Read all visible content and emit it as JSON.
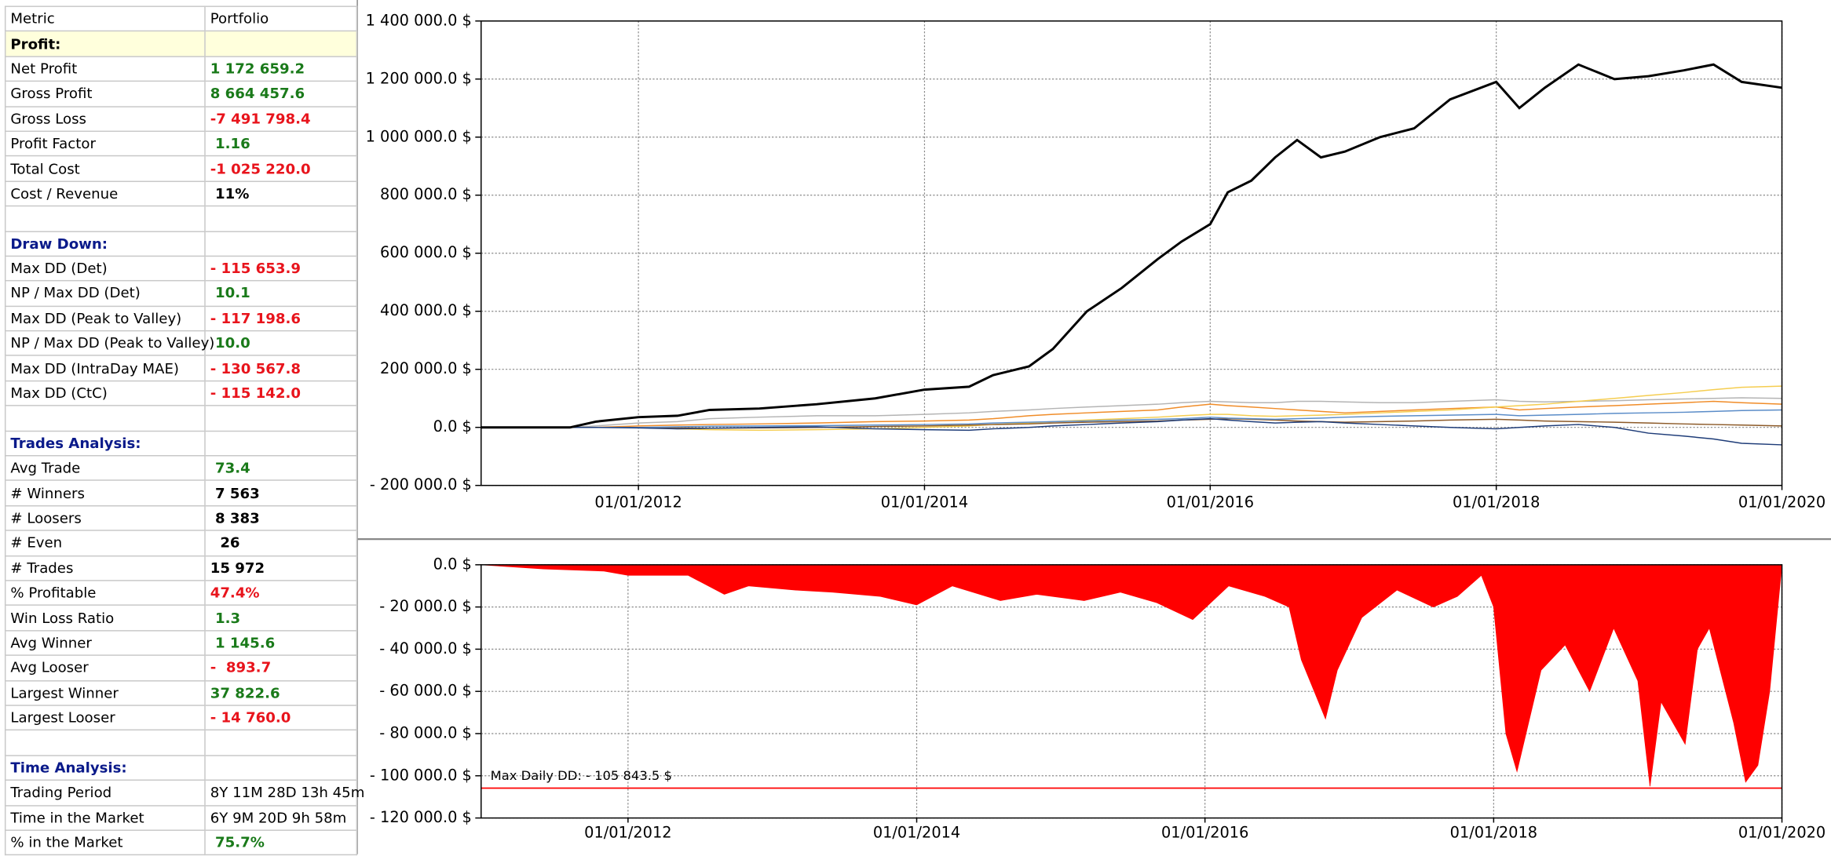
{
  "table": {
    "headers": [
      "Metric",
      "Portfolio"
    ],
    "sections": [
      {
        "title": "Profit:",
        "rows": [
          {
            "metric": "Net Profit",
            "value": "1 172 659.2",
            "color": "#1a7a1a"
          },
          {
            "metric": "Gross Profit",
            "value": "8 664 457.6",
            "color": "#1a7a1a"
          },
          {
            "metric": "Gross Loss",
            "value": "-7 491 798.4",
            "color": "#e8141c"
          },
          {
            "metric": "Profit Factor",
            "value": " 1.16",
            "color": "#1a7a1a"
          },
          {
            "metric": "Total Cost",
            "value": "-1 025 220.0",
            "color": "#e8141c"
          },
          {
            "metric": "Cost / Revenue",
            "value": " 11%",
            "color": "#000000"
          }
        ]
      },
      {
        "title": "Draw Down:",
        "rows": [
          {
            "metric": "Max DD (Det)",
            "value": "- 115 653.9",
            "color": "#e8141c"
          },
          {
            "metric": "NP / Max DD (Det)",
            "value": " 10.1",
            "color": "#1a7a1a"
          },
          {
            "metric": "Max DD (Peak to Valley)",
            "value": "- 117 198.6",
            "color": "#e8141c"
          },
          {
            "metric": "NP / Max DD (Peak to Valley)",
            "value": " 10.0",
            "color": "#1a7a1a"
          },
          {
            "metric": "Max DD (IntraDay MAE)",
            "value": "- 130 567.8",
            "color": "#e8141c"
          },
          {
            "metric": "Max DD (CtC)",
            "value": "- 115 142.0",
            "color": "#e8141c"
          }
        ]
      },
      {
        "title": "Trades Analysis:",
        "rows": [
          {
            "metric": "Avg Trade",
            "value": " 73.4",
            "color": "#1a7a1a"
          },
          {
            "metric": "# Winners",
            "value": " 7 563",
            "color": "#000000"
          },
          {
            "metric": "# Loosers",
            "value": " 8 383",
            "color": "#000000"
          },
          {
            "metric": "# Even",
            "value": "  26",
            "color": "#000000"
          },
          {
            "metric": "# Trades",
            "value": "15 972",
            "color": "#000000"
          },
          {
            "metric": "% Profitable",
            "value": "47.4%",
            "color": "#e8141c"
          },
          {
            "metric": "Win Loss Ratio",
            "value": " 1.3",
            "color": "#1a7a1a"
          },
          {
            "metric": "Avg Winner",
            "value": " 1 145.6",
            "color": "#1a7a1a"
          },
          {
            "metric": "Avg Looser",
            "value": "-  893.7",
            "color": "#e8141c"
          },
          {
            "metric": "Largest Winner",
            "value": "37 822.6",
            "color": "#1a7a1a"
          },
          {
            "metric": "Largest Looser",
            "value": "- 14 760.0",
            "color": "#e8141c"
          }
        ]
      },
      {
        "title": "Time Analysis:",
        "rows": [
          {
            "metric": "Trading Period",
            "value": "8Y 11M 28D 13h 45m",
            "color": "#000000",
            "weight": "normal"
          },
          {
            "metric": "Time in the Market",
            "value": "6Y 9M 20D 9h 58m",
            "color": "#000000",
            "weight": "normal"
          },
          {
            "metric": "% in the Market",
            "value": " 75.7%",
            "color": "#1a7a1a"
          }
        ]
      }
    ]
  },
  "chart_data": [
    {
      "type": "line",
      "x": [
        "2010-11-25",
        "2011-07-10",
        "2011-09-15",
        "2012-01-01",
        "2012-04-10",
        "2012-07-01",
        "2012-11-05",
        "2013-04-01",
        "2013-08-28",
        "2014-01-01",
        "2014-04-25",
        "2014-06-25",
        "2014-09-25",
        "2014-11-25",
        "2015-02-20",
        "2015-05-20",
        "2015-08-20",
        "2015-10-20",
        "2016-01-01",
        "2016-02-15",
        "2016-04-15",
        "2016-06-15",
        "2016-08-10",
        "2016-10-10",
        "2016-12-10",
        "2017-03-10",
        "2017-06-05",
        "2017-09-05",
        "2018-01-01",
        "2018-03-01",
        "2018-05-05",
        "2018-07-30",
        "2018-10-30",
        "2019-01-25",
        "2019-04-25",
        "2019-07-10",
        "2019-09-20",
        "2020-01-01"
      ],
      "series": [
        {
          "color": "#f08c28",
          "values": [
            0,
            0,
            0,
            5000,
            8000,
            10000,
            12000,
            15000,
            20000,
            22000,
            25000,
            30000,
            40000,
            45000,
            50000,
            55000,
            60000,
            70000,
            80000,
            75000,
            70000,
            65000,
            60000,
            55000,
            50000,
            55000,
            60000,
            65000,
            70000,
            60000,
            65000,
            70000,
            75000,
            80000,
            85000,
            90000,
            85000,
            80000
          ]
        },
        {
          "color": "#b4b4b4",
          "values": [
            0,
            0,
            5000,
            15000,
            20000,
            30000,
            35000,
            40000,
            40000,
            45000,
            50000,
            55000,
            60000,
            65000,
            70000,
            75000,
            80000,
            85000,
            90000,
            88000,
            85000,
            85000,
            90000,
            90000,
            88000,
            85000,
            85000,
            90000,
            95000,
            90000,
            88000,
            90000,
            92000,
            95000,
            98000,
            100000,
            102000,
            100000
          ]
        },
        {
          "color": "#f5cd50",
          "values": [
            0,
            0,
            0,
            0,
            -5000,
            -8000,
            -10000,
            -8000,
            -5000,
            0,
            5000,
            10000,
            15000,
            20000,
            25000,
            30000,
            35000,
            40000,
            45000,
            45000,
            40000,
            38000,
            40000,
            42000,
            45000,
            50000,
            55000,
            60000,
            70000,
            75000,
            80000,
            90000,
            100000,
            110000,
            120000,
            130000,
            138000,
            142000
          ]
        },
        {
          "color": "#8c5a28",
          "values": [
            0,
            0,
            0,
            0,
            -2000,
            -3000,
            -2000,
            0,
            3000,
            5000,
            8000,
            10000,
            12000,
            15000,
            18000,
            20000,
            22000,
            25000,
            28000,
            30000,
            28000,
            25000,
            22000,
            20000,
            18000,
            20000,
            22000,
            25000,
            28000,
            25000,
            22000,
            20000,
            18000,
            15000,
            12000,
            10000,
            8000,
            5000
          ]
        },
        {
          "color": "#5a8cc8",
          "values": [
            0,
            0,
            0,
            0,
            2000,
            4000,
            5000,
            6000,
            8000,
            10000,
            12000,
            15000,
            18000,
            20000,
            22000,
            25000,
            28000,
            30000,
            35000,
            32000,
            30000,
            28000,
            30000,
            32000,
            35000,
            38000,
            40000,
            42000,
            45000,
            40000,
            42000,
            45000,
            48000,
            50000,
            52000,
            55000,
            58000,
            60000
          ]
        },
        {
          "color": "#1e3c78",
          "values": [
            0,
            0,
            0,
            -2000,
            -5000,
            -3000,
            0,
            2000,
            -5000,
            -8000,
            -10000,
            -5000,
            0,
            5000,
            10000,
            15000,
            20000,
            25000,
            30000,
            25000,
            20000,
            15000,
            18000,
            20000,
            15000,
            10000,
            5000,
            0,
            -5000,
            0,
            5000,
            10000,
            0,
            -20000,
            -30000,
            -40000,
            -55000,
            -60000
          ]
        },
        {
          "color": "#000000",
          "values": [
            0,
            0,
            20000,
            35000,
            40000,
            60000,
            65000,
            80000,
            100000,
            130000,
            140000,
            180000,
            210000,
            270000,
            400000,
            480000,
            580000,
            640000,
            700000,
            810000,
            850000,
            930000,
            990000,
            930000,
            950000,
            1000000,
            1030000,
            1130000,
            1190000,
            1100000,
            1170000,
            1250000,
            1200000,
            1210000,
            1230000,
            1250000,
            1190000,
            1170000
          ]
        }
      ],
      "xlim": [
        "2010-11-25",
        "2020-01-01"
      ],
      "xticks": [
        {
          "value": "2012-01-01",
          "label": "01/01/2012"
        },
        {
          "value": "2014-01-01",
          "label": "01/01/2014"
        },
        {
          "value": "2016-01-01",
          "label": "01/01/2016"
        },
        {
          "value": "2018-01-01",
          "label": "01/01/2018"
        },
        {
          "value": "2020-01-01",
          "label": "01/01/2020"
        }
      ],
      "ylim": [
        -200000,
        1400000
      ],
      "yticks": [
        {
          "value": -200000,
          "label": "- 200 000.0 $"
        },
        {
          "value": 0,
          "label": "0.0 $"
        },
        {
          "value": 200000,
          "label": "200 000.0 $"
        },
        {
          "value": 400000,
          "label": "400 000.0 $"
        },
        {
          "value": 600000,
          "label": "600 000.0 $"
        },
        {
          "value": 800000,
          "label": "800 000.0 $"
        },
        {
          "value": 1000000,
          "label": "1 000 000.0 $"
        },
        {
          "value": 1200000,
          "label": "1 200 000.0 $"
        },
        {
          "value": 1400000,
          "label": "1 400 000.0 $"
        }
      ],
      "grid": true
    },
    {
      "type": "area",
      "x": [
        "2010-12-25",
        "2011-06-01",
        "2011-11-01",
        "2012-01-01",
        "2012-06-01",
        "2012-09-01",
        "2012-11-01",
        "2013-03-01",
        "2013-06-01",
        "2013-10-01",
        "2014-01-01",
        "2014-04-01",
        "2014-08-01",
        "2014-11-01",
        "2015-03-01",
        "2015-06-01",
        "2015-09-01",
        "2015-12-01",
        "2016-03-01",
        "2016-06-01",
        "2016-08-01",
        "2016-09-01",
        "2016-11-01",
        "2016-12-01",
        "2017-02-01",
        "2017-05-01",
        "2017-08-01",
        "2017-10-01",
        "2017-12-01",
        "2018-01-01",
        "2018-02-01",
        "2018-03-01",
        "2018-05-01",
        "2018-07-01",
        "2018-09-01",
        "2018-11-01",
        "2019-01-01",
        "2019-02-01",
        "2019-03-01",
        "2019-05-01",
        "2019-06-01",
        "2019-07-01",
        "2019-09-01",
        "2019-10-01",
        "2019-11-01",
        "2019-12-01",
        "2020-01-01"
      ],
      "values": [
        0,
        -2000,
        -3000,
        -5000,
        -5000,
        -14000,
        -10000,
        -12000,
        -13000,
        -15000,
        -19000,
        -10000,
        -17000,
        -14000,
        -17000,
        -13000,
        -18000,
        -26000,
        -10000,
        -15000,
        -20000,
        -45000,
        -73000,
        -50000,
        -25000,
        -12000,
        -20000,
        -15000,
        -5000,
        -20000,
        -80000,
        -98000,
        -50000,
        -38000,
        -60000,
        -30000,
        -55000,
        -105000,
        -65000,
        -85000,
        -40000,
        -30000,
        -75000,
        -103000,
        -95000,
        -60000,
        0
      ],
      "color": "#ff0000",
      "hline": -105843.5,
      "annotation": "Max Daily DD: - 105 843.5 $",
      "xlim": [
        "2010-12-25",
        "2020-01-01"
      ],
      "xticks": [
        {
          "value": "2012-01-01",
          "label": "01/01/2012"
        },
        {
          "value": "2014-01-01",
          "label": "01/01/2014"
        },
        {
          "value": "2016-01-01",
          "label": "01/01/2016"
        },
        {
          "value": "2018-01-01",
          "label": "01/01/2018"
        },
        {
          "value": "2020-01-01",
          "label": "01/01/2020"
        }
      ],
      "ylim": [
        -120000,
        0
      ],
      "yticks": [
        {
          "value": -120000,
          "label": "- 120 000.0 $"
        },
        {
          "value": -100000,
          "label": "- 100 000.0 $"
        },
        {
          "value": -80000,
          "label": "- 80 000.0 $"
        },
        {
          "value": -60000,
          "label": "- 60 000.0 $"
        },
        {
          "value": -40000,
          "label": "- 40 000.0 $"
        },
        {
          "value": -20000,
          "label": "- 20 000.0 $"
        },
        {
          "value": 0,
          "label": "0.0 $"
        }
      ],
      "grid": true
    }
  ]
}
